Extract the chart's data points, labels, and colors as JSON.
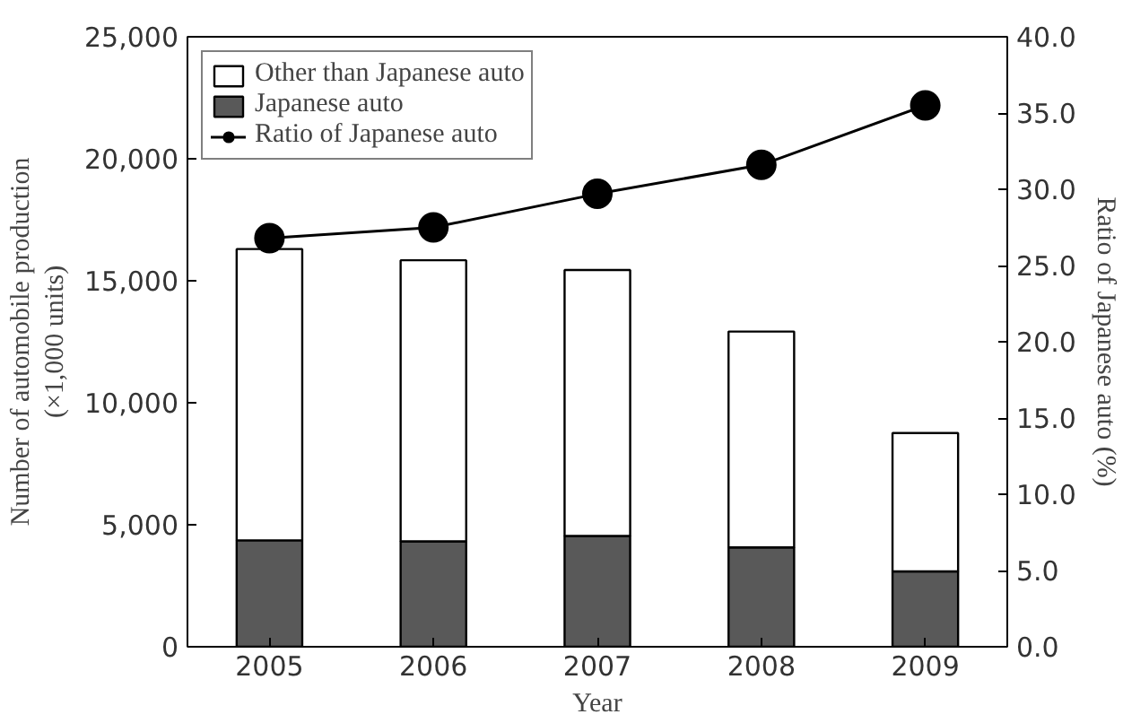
{
  "chart_data": {
    "type": "bar",
    "stacked": true,
    "categories": [
      "2005",
      "2006",
      "2007",
      "2008",
      "2009"
    ],
    "xlabel": "Year",
    "ylabel": "Number of automobile production\n(×1,000 units)",
    "y2label": "Ratio of Japanese auto (%)",
    "series": [
      {
        "name": "Japanese auto",
        "color": "#595959",
        "values": [
          4360,
          4320,
          4540,
          4070,
          3090
        ]
      },
      {
        "name": "Other than Japanese auto",
        "color": "#ffffff",
        "values": [
          11940,
          11520,
          10900,
          8850,
          5670
        ]
      },
      {
        "name": "Ratio of Japanese auto",
        "type": "line",
        "axis": "y2",
        "color": "#000000",
        "marker": "circle",
        "values": [
          26.8,
          27.5,
          29.7,
          31.6,
          35.5
        ]
      }
    ],
    "ylim": [
      0,
      25000
    ],
    "yticks": [
      {
        "value": 0,
        "label": "0"
      },
      {
        "value": 5000,
        "label": "5,000"
      },
      {
        "value": 10000,
        "label": "10,000"
      },
      {
        "value": 15000,
        "label": "15,000"
      },
      {
        "value": 20000,
        "label": "20,000"
      },
      {
        "value": 25000,
        "label": "25,000"
      }
    ],
    "y2lim": [
      0,
      40
    ],
    "y2ticks": [
      {
        "value": 0,
        "label": "0.0"
      },
      {
        "value": 5,
        "label": "5.0"
      },
      {
        "value": 10,
        "label": "10.0"
      },
      {
        "value": 15,
        "label": "15.0"
      },
      {
        "value": 20,
        "label": "20.0"
      },
      {
        "value": 25,
        "label": "25.0"
      },
      {
        "value": 30,
        "label": "30.0"
      },
      {
        "value": 35,
        "label": "35.0"
      },
      {
        "value": 40,
        "label": "40.0"
      }
    ],
    "grid": false,
    "legend": "top left"
  }
}
